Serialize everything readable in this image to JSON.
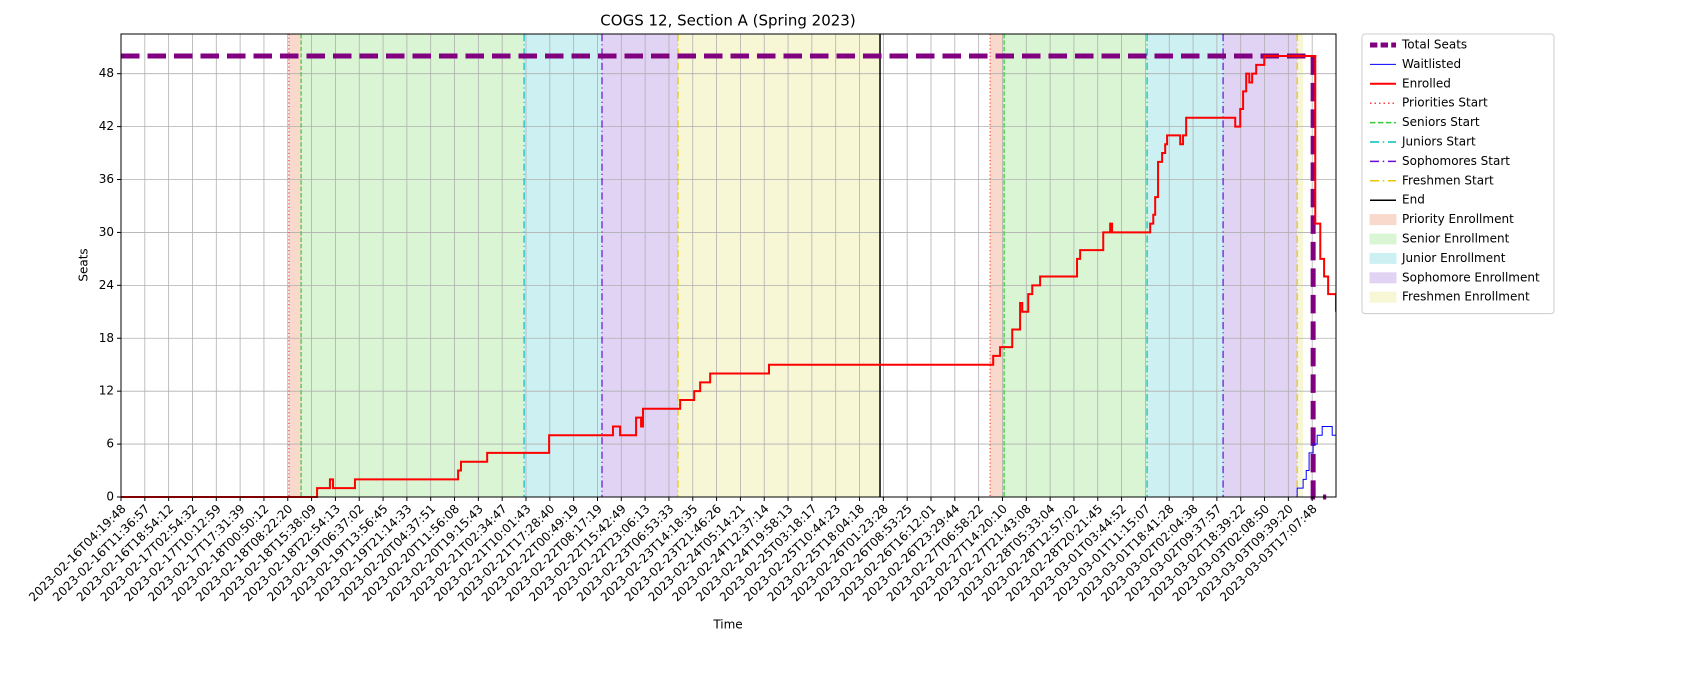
{
  "chart_data": {
    "type": "line",
    "title": "COGS 12, Section A (Spring 2023)",
    "xlabel": "Time",
    "ylabel": "Seats",
    "xlim": [
      0,
      51
    ],
    "ylim": [
      0,
      52.5
    ],
    "yticks": [
      0,
      6,
      12,
      18,
      24,
      30,
      36,
      42,
      48
    ],
    "grid": true,
    "drawstyle": "steps-post",
    "legend": "outside upper right",
    "xticks": [
      {
        "value": 0,
        "label": "2023-02-16T04:19:48"
      },
      {
        "value": 1,
        "label": "2023-02-16T11:36:57"
      },
      {
        "value": 2,
        "label": "2023-02-16T18:54:12"
      },
      {
        "value": 3,
        "label": "2023-02-17T02:54:32"
      },
      {
        "value": 4,
        "label": "2023-02-17T10:12:59"
      },
      {
        "value": 5,
        "label": "2023-02-17T17:31:39"
      },
      {
        "value": 6,
        "label": "2023-02-18T00:50:12"
      },
      {
        "value": 7,
        "label": "2023-02-18T08:22:20"
      },
      {
        "value": 8,
        "label": "2023-02-18T15:38:09"
      },
      {
        "value": 9,
        "label": "2023-02-18T22:54:13"
      },
      {
        "value": 10,
        "label": "2023-02-19T06:37:02"
      },
      {
        "value": 11,
        "label": "2023-02-19T13:56:45"
      },
      {
        "value": 12,
        "label": "2023-02-19T21:14:33"
      },
      {
        "value": 13,
        "label": "2023-02-20T04:37:51"
      },
      {
        "value": 14,
        "label": "2023-02-20T11:56:08"
      },
      {
        "value": 15,
        "label": "2023-02-20T19:15:43"
      },
      {
        "value": 16,
        "label": "2023-02-21T02:34:47"
      },
      {
        "value": 17,
        "label": "2023-02-21T10:01:43"
      },
      {
        "value": 18,
        "label": "2023-02-21T17:28:40"
      },
      {
        "value": 19,
        "label": "2023-02-22T00:49:19"
      },
      {
        "value": 20,
        "label": "2023-02-22T08:17:19"
      },
      {
        "value": 21,
        "label": "2023-02-22T15:42:49"
      },
      {
        "value": 22,
        "label": "2023-02-22T23:06:13"
      },
      {
        "value": 23,
        "label": "2023-02-23T06:53:33"
      },
      {
        "value": 24,
        "label": "2023-02-23T14:18:35"
      },
      {
        "value": 25,
        "label": "2023-02-23T21:46:26"
      },
      {
        "value": 26,
        "label": "2023-02-24T05:14:21"
      },
      {
        "value": 27,
        "label": "2023-02-24T12:37:14"
      },
      {
        "value": 28,
        "label": "2023-02-24T19:58:13"
      },
      {
        "value": 29,
        "label": "2023-02-25T03:18:17"
      },
      {
        "value": 30,
        "label": "2023-02-25T10:44:23"
      },
      {
        "value": 31,
        "label": "2023-02-25T18:04:18"
      },
      {
        "value": 32,
        "label": "2023-02-26T01:23:28"
      },
      {
        "value": 33,
        "label": "2023-02-26T08:53:25"
      },
      {
        "value": 34,
        "label": "2023-02-26T16:12:01"
      },
      {
        "value": 35,
        "label": "2023-02-26T23:29:44"
      },
      {
        "value": 36,
        "label": "2023-02-27T06:58:22"
      },
      {
        "value": 37,
        "label": "2023-02-27T14:20:10"
      },
      {
        "value": 38,
        "label": "2023-02-27T21:43:08"
      },
      {
        "value": 39,
        "label": "2023-02-28T05:33:04"
      },
      {
        "value": 40,
        "label": "2023-02-28T12:57:02"
      },
      {
        "value": 41,
        "label": "2023-02-28T20:21:45"
      },
      {
        "value": 42,
        "label": "2023-03-01T03:44:52"
      },
      {
        "value": 43,
        "label": "2023-03-01T11:15:07"
      },
      {
        "value": 44,
        "label": "2023-03-01T18:41:28"
      },
      {
        "value": 45,
        "label": "2023-03-02T02:04:38"
      },
      {
        "value": 46,
        "label": "2023-03-02T09:37:57"
      },
      {
        "value": 47,
        "label": "2023-03-02T18:39:22"
      },
      {
        "value": 48,
        "label": "2023-03-03T02:08:50"
      },
      {
        "value": 49,
        "label": "2023-03-03T09:39:20"
      },
      {
        "value": 50,
        "label": "2023-03-03T17:07:48"
      }
    ],
    "regions": [
      {
        "name": "Priority Enrollment",
        "color": "#f8d9cc",
        "start": [
          7.05,
          36.48
        ],
        "end": [
          7.56,
          37.07
        ]
      },
      {
        "name": "Senior Enrollment",
        "color": "#d9f5d3",
        "start": [
          7.56,
          37.07
        ],
        "end": [
          16.92,
          43.07
        ]
      },
      {
        "name": "Junior Enrollment",
        "color": "#cdf0f3",
        "start": [
          16.92,
          43.07
        ],
        "end": [
          20.19,
          46.26
        ]
      },
      {
        "name": "Sophomore Enrollment",
        "color": "#e1d3f4",
        "start": [
          20.19,
          46.26
        ],
        "end": [
          23.38,
          49.37
        ]
      },
      {
        "name": "Freshmen Enrollment",
        "color": "#f7f7d6",
        "start": [
          23.38,
          49.37
        ],
        "end": [
          31.86,
          49.62
        ]
      }
    ],
    "markers": [
      {
        "name": "Priorities Start",
        "color": "#ff4040",
        "style": "dotted",
        "x": [
          7.05,
          36.48
        ]
      },
      {
        "name": "Seniors Start",
        "color": "#32cd32",
        "style": "dashed",
        "x": [
          7.56,
          37.07
        ]
      },
      {
        "name": "Juniors Start",
        "color": "#00bfbf",
        "style": "dashdot",
        "x": [
          16.92,
          43.07
        ]
      },
      {
        "name": "Sophomores Start",
        "color": "#6a0dd4",
        "style": "dashdot",
        "x": [
          20.19,
          46.26
        ]
      },
      {
        "name": "Freshmen Start",
        "color": "#e6c800",
        "style": "dashdot",
        "x": [
          23.38,
          49.37
        ]
      },
      {
        "name": "End",
        "color": "#000000",
        "style": "solid",
        "x": [
          31.86
        ]
      }
    ],
    "series": [
      {
        "name": "Total Seats",
        "color": "#800080",
        "width": 5,
        "style": "dashed",
        "x": [
          0,
          49.96,
          50.04,
          50.59
        ],
        "values": [
          50,
          50,
          0,
          0
        ]
      },
      {
        "name": "Waitlisted",
        "color": "#0000ff",
        "width": 1,
        "style": "solid",
        "x": [
          0,
          49.37,
          49.62,
          49.75,
          49.87,
          50.04,
          50.21,
          50.42,
          50.84,
          51
        ],
        "values": [
          0,
          1,
          2,
          3,
          5,
          6,
          7,
          8,
          7,
          7
        ]
      },
      {
        "name": "Enrolled",
        "color": "#ff0000",
        "width": 2,
        "style": "solid",
        "x": [
          0,
          8.23,
          8.77,
          8.9,
          9.82,
          14.15,
          14.27,
          15.37,
          17.97,
          20.65,
          20.95,
          21.62,
          21.83,
          21.91,
          23.47,
          24.06,
          24.31,
          24.73,
          27.2,
          36.61,
          36.9,
          37.41,
          37.74,
          37.83,
          38.08,
          38.25,
          38.58,
          40.13,
          40.26,
          41.23,
          41.52,
          41.6,
          43.2,
          43.33,
          43.41,
          43.53,
          43.7,
          43.83,
          43.91,
          44.46,
          44.58,
          44.71,
          46.77,
          46.98,
          47.1,
          47.23,
          47.36,
          47.48,
          47.65,
          47.99,
          50.13,
          50.34,
          50.5,
          50.67,
          50.84,
          51
        ],
        "values": [
          0,
          1,
          2,
          1,
          2,
          3,
          4,
          5,
          7,
          8,
          7,
          9,
          8,
          10,
          11,
          12,
          13,
          14,
          15,
          16,
          17,
          19,
          22,
          21,
          23,
          24,
          25,
          27,
          28,
          30,
          31,
          30,
          31,
          32,
          34,
          38,
          39,
          40,
          41,
          40,
          41,
          43,
          42,
          44,
          46,
          48,
          47,
          48,
          49,
          50,
          31,
          27,
          25,
          23,
          23,
          21
        ]
      }
    ]
  }
}
